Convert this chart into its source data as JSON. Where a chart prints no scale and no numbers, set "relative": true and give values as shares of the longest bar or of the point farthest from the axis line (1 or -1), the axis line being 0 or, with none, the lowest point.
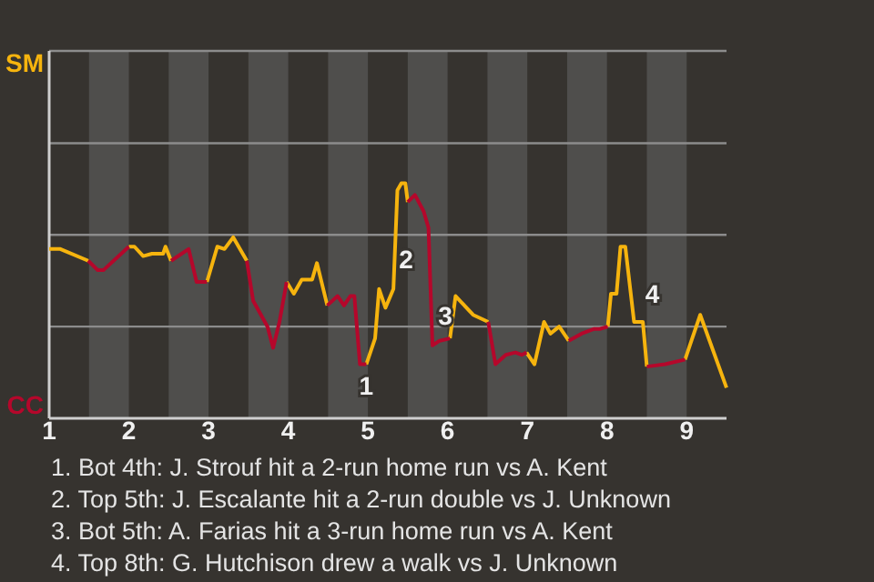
{
  "chart_data": {
    "type": "line",
    "x": [
      1,
      1.14,
      1.49,
      1.61,
      1.68,
      2,
      2.07,
      2.18,
      2.29,
      2.43,
      2.46,
      2.53,
      2.75,
      2.85,
      2.98,
      3.11,
      3.2,
      3.31,
      3.48,
      3.56,
      3.74,
      3.81,
      3.89,
      3.98,
      4.07,
      4.17,
      4.3,
      4.36,
      4.49,
      4.62,
      4.7,
      4.78,
      4.83,
      4.9,
      4.98,
      5.09,
      5.14,
      5.22,
      5.32,
      5.37,
      5.42,
      5.47,
      5.5,
      5.59,
      5.7,
      5.76,
      5.81,
      5.9,
      6.03,
      6.1,
      6.32,
      6.51,
      6.6,
      6.73,
      6.85,
      6.93,
      6.99,
      7.09,
      7.21,
      7.29,
      7.4,
      7.52,
      7.68,
      7.84,
      7.91,
      8.01,
      8.05,
      8.12,
      8.17,
      8.23,
      8.34,
      8.45,
      8.5,
      8.73,
      8.98,
      9.17,
      9.5
    ],
    "relative": true,
    "series": [
      {
        "name": "SM",
        "color": "#f6b40e",
        "values": [
          0.72,
          0.72,
          0.67,
          null,
          null,
          0.73,
          0.73,
          0.69,
          0.7,
          0.7,
          0.73,
          0.67,
          null,
          null,
          0.58,
          0.73,
          0.72,
          0.77,
          0.67,
          null,
          null,
          null,
          null,
          0.58,
          0.53,
          0.59,
          0.59,
          0.66,
          0.48,
          null,
          null,
          null,
          null,
          null,
          0.23,
          0.34,
          0.55,
          0.47,
          0.55,
          0.97,
          1,
          1,
          0.92,
          null,
          null,
          null,
          null,
          null,
          0.34,
          0.52,
          0.44,
          0.41,
          null,
          null,
          null,
          null,
          0.28,
          0.23,
          0.41,
          0.36,
          0.39,
          0.33,
          null,
          null,
          null,
          0.39,
          0.53,
          0.53,
          0.73,
          0.73,
          0.41,
          0.41,
          0.22,
          null,
          0.25,
          0.44,
          0.13
        ]
      },
      {
        "name": "CC",
        "color": "#b5072b",
        "values": [
          null,
          null,
          0.67,
          0.63,
          0.63,
          0.73,
          null,
          null,
          null,
          null,
          null,
          0.67,
          0.72,
          0.58,
          0.58,
          null,
          null,
          null,
          0.67,
          0.5,
          0.39,
          0.3,
          0.41,
          0.58,
          null,
          null,
          null,
          null,
          0.48,
          0.52,
          0.48,
          0.52,
          0.52,
          0.23,
          0.23,
          null,
          null,
          null,
          null,
          null,
          null,
          null,
          0.92,
          0.95,
          0.88,
          0.81,
          0.31,
          0.33,
          0.34,
          null,
          null,
          0.41,
          0.23,
          0.27,
          0.28,
          0.27,
          0.28,
          null,
          null,
          null,
          null,
          0.33,
          0.36,
          0.38,
          0.38,
          0.39,
          null,
          null,
          null,
          null,
          null,
          null,
          0.22,
          0.23,
          0.25,
          null,
          null
        ]
      }
    ],
    "xlim": [
      1,
      9.5
    ],
    "xticks": [
      1,
      2,
      3,
      4,
      5,
      6,
      7,
      8,
      9
    ],
    "ref_lines": [
      {
        "axis": "y",
        "value": 0.39,
        "color": "#8c8c8c"
      },
      {
        "axis": "y",
        "value": 0.78,
        "color": "#8c8c8c"
      },
      {
        "axis": "y",
        "value": 1.17,
        "color": "#8c8c8c"
      }
    ],
    "legend": "left",
    "marker": "none",
    "bands": [
      {
        "axis": "x",
        "from": 1.5,
        "to": 2,
        "color": "#4f4e4c"
      },
      {
        "axis": "x",
        "from": 2.5,
        "to": 3,
        "color": "#4f4e4c"
      },
      {
        "axis": "x",
        "from": 3.5,
        "to": 4,
        "color": "#4f4e4c"
      },
      {
        "axis": "x",
        "from": 4.5,
        "to": 5,
        "color": "#4f4e4c"
      },
      {
        "axis": "x",
        "from": 5.5,
        "to": 6,
        "color": "#4f4e4c"
      },
      {
        "axis": "x",
        "from": 6.5,
        "to": 7,
        "color": "#4f4e4c"
      },
      {
        "axis": "x",
        "from": 7.5,
        "to": 8,
        "color": "#4f4e4c"
      },
      {
        "axis": "x",
        "from": 8.5,
        "to": 9,
        "color": "#4f4e4c"
      }
    ],
    "annotations": [
      {
        "text": "1",
        "x": 4.98,
        "y": 0.23
      },
      {
        "text": "2",
        "x": 5.32,
        "y": 0.55
      },
      {
        "text": "3",
        "x": 5.81,
        "y": 0.31
      },
      {
        "text": "4",
        "x": 8.34,
        "y": 0.41
      },
      "1. Bot 4th: J. Strouf hit a 2-run home run vs A. Kent",
      "2. Top 5th: J. Escalante hit a 2-run double vs J. Unknown",
      "3. Bot 5th: A. Farias hit a 3-run home run vs A. Kent",
      "4. Top 8th: G. Hutchison drew a walk vs J. Unknown"
    ]
  }
}
